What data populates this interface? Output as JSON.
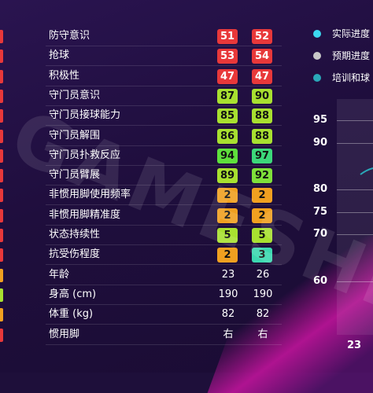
{
  "attributes": [
    {
      "label": "防守意识",
      "v1": "51",
      "v2": "52",
      "c1": "#e8383a",
      "c2": "#e8383a",
      "edge": "#e8383a"
    },
    {
      "label": "抢球",
      "v1": "53",
      "v2": "54",
      "c1": "#e8383a",
      "c2": "#e8383a",
      "edge": "#e8383a"
    },
    {
      "label": "积极性",
      "v1": "47",
      "v2": "47",
      "c1": "#e8383a",
      "c2": "#e8383a",
      "edge": "#e8383a"
    },
    {
      "label": "守门员意识",
      "v1": "87",
      "v2": "90",
      "c1": "#a8e030",
      "c2": "#a8e030",
      "edge": "#e8383a"
    },
    {
      "label": "守门员接球能力",
      "v1": "85",
      "v2": "88",
      "c1": "#a8e030",
      "c2": "#a8e030",
      "edge": "#e8383a"
    },
    {
      "label": "守门员解围",
      "v1": "86",
      "v2": "88",
      "c1": "#a8e030",
      "c2": "#a8e030",
      "edge": "#e8383a"
    },
    {
      "label": "守门员扑救反应",
      "v1": "94",
      "v2": "97",
      "c1": "#5fe03c",
      "c2": "#3cd87a",
      "edge": "#e8383a"
    },
    {
      "label": "守门员臂展",
      "v1": "89",
      "v2": "92",
      "c1": "#a8e030",
      "c2": "#7fe03a",
      "edge": "#e8383a"
    },
    {
      "label": "非惯用脚使用频率",
      "v1": "2",
      "v2": "2",
      "c1": "#f0a020",
      "c2": "#f0a020",
      "edge": "#e8383a"
    },
    {
      "label": "非惯用脚精准度",
      "v1": "2",
      "v2": "2",
      "c1": "#f0a020",
      "c2": "#f0a020",
      "edge": "#e8383a"
    },
    {
      "label": "状态持续性",
      "v1": "5",
      "v2": "5",
      "c1": "#a8e030",
      "c2": "#a8e030",
      "edge": "#e8383a"
    },
    {
      "label": "抗受伤程度",
      "v1": "2",
      "v2": "3",
      "c1": "#f0a020",
      "c2": "#3cd8b0",
      "edge": "#e8383a"
    }
  ],
  "info": [
    {
      "label": "年龄",
      "v1": "23",
      "v2": "26",
      "edge": "#f0a020"
    },
    {
      "label": "身高 (cm)",
      "v1": "190",
      "v2": "190",
      "edge": "#a8e030"
    },
    {
      "label": "体重 (kg)",
      "v1": "82",
      "v2": "82",
      "edge": "#f0a020"
    },
    {
      "label": "惯用脚",
      "v1": "右",
      "v2": "右",
      "edge": "#e8383a"
    }
  ],
  "legend": [
    {
      "text": "实际进度",
      "color": "#3cd8f0"
    },
    {
      "text": "预期进度",
      "color": "#c8c8c8"
    },
    {
      "text": "培训和球",
      "color": "#2aa8b8"
    }
  ],
  "chart_data": {
    "type": "line",
    "yticks": [
      "95",
      "90",
      "80",
      "75",
      "70",
      "60"
    ],
    "xticks": [
      "23"
    ]
  },
  "watermark": "GAMESHI"
}
